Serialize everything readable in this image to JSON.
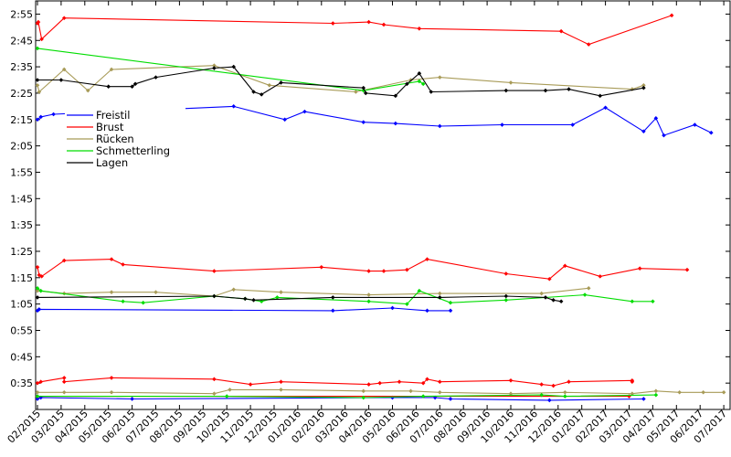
{
  "chart_data": {
    "type": "line",
    "title": "",
    "xlabel": "",
    "ylabel": "",
    "x_tick_labels": [
      "02/2015",
      "03/2015",
      "04/2015",
      "05/2015",
      "06/2015",
      "07/2015",
      "08/2015",
      "09/2015",
      "10/2015",
      "11/2015",
      "12/2015",
      "01/2016",
      "02/2016",
      "03/2016",
      "04/2016",
      "05/2016",
      "06/2016",
      "07/2016",
      "08/2016",
      "09/2016",
      "10/2016",
      "11/2016",
      "12/2016",
      "01/2017",
      "02/2017",
      "03/2017",
      "04/2017",
      "05/2017",
      "06/2017",
      "07/2017"
    ],
    "y_tick_labels": [
      "0:35",
      "0:45",
      "0:55",
      "1:05",
      "1:15",
      "1:25",
      "1:35",
      "1:45",
      "1:55",
      "2:05",
      "2:15",
      "2:25",
      "2:35",
      "2:45",
      "2:55"
    ],
    "y_unit": "seconds",
    "ylim": [
      25,
      180
    ],
    "grid": false,
    "legend_position": "upper-left",
    "series": [
      {
        "name": "Freistil",
        "color": "#0000ff",
        "segments": [
          [
            [
              "2015-02-01",
              135
            ],
            [
              "2015-02-05",
              136
            ],
            [
              "2015-02-20",
              137
            ],
            [
              "2015-10-10",
              140
            ],
            [
              "2015-12-15",
              135
            ],
            [
              "2016-01-10",
              138
            ],
            [
              "2016-03-25",
              134
            ],
            [
              "2016-05-05",
              133.5
            ],
            [
              "2016-07-01",
              132.5
            ],
            [
              "2016-09-20",
              133
            ],
            [
              "2016-12-20",
              133
            ],
            [
              "2017-02-01",
              139.5
            ],
            [
              "2017-03-20",
              130.5
            ],
            [
              "2017-04-05",
              135.5
            ],
            [
              "2017-04-15",
              129
            ],
            [
              "2017-05-25",
              133
            ],
            [
              "2017-06-15",
              130
            ]
          ],
          [
            [
              "2015-02-01",
              62.5
            ],
            [
              "2015-02-03",
              63
            ],
            [
              "2016-02-15",
              62.5
            ],
            [
              "2016-05-01",
              63.5
            ],
            [
              "2016-06-15",
              62.5
            ],
            [
              "2016-07-15",
              62.5
            ]
          ],
          [
            [
              "2015-02-01",
              29
            ],
            [
              "2015-02-05",
              29.5
            ],
            [
              "2015-06-01",
              29
            ],
            [
              "2016-05-01",
              29.5
            ],
            [
              "2016-06-25",
              29.5
            ],
            [
              "2016-07-15",
              29
            ],
            [
              "2016-11-20",
              28.5
            ],
            [
              "2017-03-20",
              29
            ]
          ]
        ]
      },
      {
        "name": "Brust",
        "color": "#ff0000",
        "segments": [
          [
            [
              "2015-02-01",
              171.5
            ],
            [
              "2015-02-02",
              172
            ],
            [
              "2015-02-06",
              165.5
            ],
            [
              "2015-03-05",
              173.5
            ],
            [
              "2016-02-15",
              171.5
            ],
            [
              "2016-04-01",
              172
            ],
            [
              "2016-04-20",
              171
            ],
            [
              "2016-06-05",
              169.5
            ],
            [
              "2016-12-05",
              168.5
            ],
            [
              "2017-01-10",
              163.5
            ],
            [
              "2017-04-25",
              174.5
            ]
          ],
          [
            [
              "2015-02-01",
              79
            ],
            [
              "2015-02-03",
              76
            ],
            [
              "2015-02-06",
              75.5
            ],
            [
              "2015-03-05",
              81.5
            ],
            [
              "2015-05-05",
              82
            ],
            [
              "2015-05-20",
              80
            ],
            [
              "2015-09-15",
              77.5
            ],
            [
              "2016-02-01",
              79
            ],
            [
              "2016-04-01",
              77.5
            ],
            [
              "2016-04-20",
              77.5
            ],
            [
              "2016-05-20",
              78
            ],
            [
              "2016-06-15",
              82
            ],
            [
              "2016-09-25",
              76.5
            ],
            [
              "2016-11-20",
              74.5
            ],
            [
              "2016-12-10",
              79.5
            ],
            [
              "2017-01-25",
              75.5
            ],
            [
              "2017-03-15",
              78.5
            ],
            [
              "2017-05-15",
              78
            ]
          ],
          [
            [
              "2015-02-01",
              35
            ],
            [
              "2015-02-05",
              35.5
            ],
            [
              "2015-03-05",
              37
            ],
            [
              "2015-03-05",
              35.5
            ],
            [
              "2015-05-05",
              37
            ],
            [
              "2015-09-15",
              36.5
            ],
            [
              "2015-11-01",
              34.5
            ],
            [
              "2015-12-10",
              35.5
            ],
            [
              "2016-04-01",
              34.5
            ],
            [
              "2016-04-15",
              35
            ],
            [
              "2016-05-10",
              35.5
            ],
            [
              "2016-06-10",
              35
            ],
            [
              "2016-06-15",
              36.5
            ],
            [
              "2016-07-01",
              35.5
            ],
            [
              "2016-10-01",
              36
            ],
            [
              "2016-11-10",
              34.5
            ],
            [
              "2016-11-25",
              34
            ],
            [
              "2016-12-15",
              35.5
            ],
            [
              "2017-03-05",
              36
            ],
            [
              "2017-03-05",
              35.5
            ]
          ],
          [
            [
              "2015-02-01",
              30
            ],
            [
              "2017-03-01",
              30
            ]
          ]
        ]
      },
      {
        "name": "Rücken",
        "color": "#a89b58",
        "segments": [
          [
            [
              "2015-02-01",
              148
            ],
            [
              "2015-02-03",
              145.5
            ],
            [
              "2015-03-05",
              154
            ],
            [
              "2015-04-05",
              146
            ],
            [
              "2015-05-05",
              154
            ],
            [
              "2015-09-15",
              155.5
            ],
            [
              "2015-11-25",
              148
            ],
            [
              "2016-03-15",
              145.5
            ],
            [
              "2016-05-25",
              150
            ],
            [
              "2016-07-01",
              151
            ],
            [
              "2016-10-01",
              149
            ],
            [
              "2017-03-05",
              146.5
            ],
            [
              "2017-03-20",
              148
            ]
          ],
          [
            [
              "2015-02-01",
              70
            ],
            [
              "2015-03-05",
              69
            ],
            [
              "2015-05-05",
              69.5
            ],
            [
              "2015-07-01",
              69.5
            ],
            [
              "2015-09-15",
              68
            ],
            [
              "2015-10-10",
              70.5
            ],
            [
              "2015-12-10",
              69.5
            ],
            [
              "2016-04-01",
              68.5
            ],
            [
              "2016-07-01",
              69
            ],
            [
              "2016-11-10",
              69
            ],
            [
              "2017-01-10",
              71
            ]
          ],
          [
            [
              "2015-02-01",
              31.5
            ],
            [
              "2015-03-05",
              31.5
            ],
            [
              "2015-05-05",
              31.5
            ],
            [
              "2015-09-15",
              31
            ],
            [
              "2015-10-05",
              32.5
            ],
            [
              "2015-12-10",
              32.5
            ],
            [
              "2016-03-25",
              32
            ],
            [
              "2016-05-25",
              32
            ],
            [
              "2016-07-01",
              31.5
            ],
            [
              "2016-10-01",
              31
            ],
            [
              "2016-12-10",
              31.5
            ],
            [
              "2017-03-05",
              31
            ],
            [
              "2017-04-05",
              32
            ],
            [
              "2017-05-05",
              31.5
            ],
            [
              "2017-06-05",
              31.5
            ],
            [
              "2017-07-01",
              31.5
            ]
          ]
        ]
      },
      {
        "name": "Schmetterling",
        "color": "#00dd00",
        "segments": [
          [
            [
              "2015-02-01",
              162
            ],
            [
              "2016-03-25",
              146
            ],
            [
              "2016-06-05",
              149.5
            ],
            [
              "2016-06-10",
              148.5
            ]
          ],
          [
            [
              "2015-02-01",
              71
            ],
            [
              "2015-02-05",
              70
            ],
            [
              "2015-05-20",
              66
            ],
            [
              "2015-06-15",
              65.5
            ],
            [
              "2015-09-15",
              68
            ],
            [
              "2015-10-25",
              67
            ],
            [
              "2015-11-15",
              66
            ],
            [
              "2015-12-05",
              67.5
            ],
            [
              "2016-04-01",
              66
            ],
            [
              "2016-05-20",
              65
            ],
            [
              "2016-06-05",
              70
            ],
            [
              "2016-07-15",
              65.5
            ],
            [
              "2016-09-25",
              66.5
            ],
            [
              "2017-01-05",
              68.5
            ],
            [
              "2017-03-05",
              66
            ],
            [
              "2017-04-01",
              66
            ]
          ],
          [
            [
              "2015-02-01",
              30
            ],
            [
              "2015-10-01",
              30
            ],
            [
              "2016-03-25",
              29.5
            ],
            [
              "2016-06-10",
              30
            ],
            [
              "2016-11-10",
              30.5
            ],
            [
              "2016-12-10",
              30
            ],
            [
              "2017-04-05",
              30.5
            ]
          ]
        ]
      },
      {
        "name": "Lagen",
        "color": "#000000",
        "segments": [
          [
            [
              "2015-02-01",
              150
            ],
            [
              "2015-03-01",
              150
            ],
            [
              "2015-05-01",
              147.5
            ],
            [
              "2015-06-01",
              147.5
            ],
            [
              "2015-06-05",
              148.5
            ],
            [
              "2015-07-01",
              151
            ],
            [
              "2015-09-15",
              154.5
            ],
            [
              "2015-10-10",
              155
            ],
            [
              "2015-11-05",
              145.5
            ],
            [
              "2015-11-15",
              144.5
            ],
            [
              "2015-12-10",
              149
            ],
            [
              "2016-03-25",
              147
            ],
            [
              "2016-03-28",
              145
            ],
            [
              "2016-05-05",
              144
            ],
            [
              "2016-05-20",
              148.5
            ],
            [
              "2016-06-05",
              152.5
            ],
            [
              "2016-06-20",
              145.5
            ],
            [
              "2016-09-25",
              146
            ],
            [
              "2016-11-15",
              146
            ],
            [
              "2016-12-15",
              146.5
            ],
            [
              "2017-01-25",
              144
            ],
            [
              "2017-03-20",
              147
            ]
          ],
          [
            [
              "2015-02-01",
              67.5
            ],
            [
              "2015-09-15",
              68
            ],
            [
              "2015-10-25",
              67
            ],
            [
              "2015-11-05",
              66.5
            ],
            [
              "2016-02-15",
              67.5
            ],
            [
              "2016-07-01",
              67.5
            ],
            [
              "2016-09-25",
              68
            ],
            [
              "2016-11-15",
              67.5
            ],
            [
              "2016-11-25",
              66.5
            ],
            [
              "2016-12-05",
              66
            ]
          ]
        ]
      }
    ]
  }
}
